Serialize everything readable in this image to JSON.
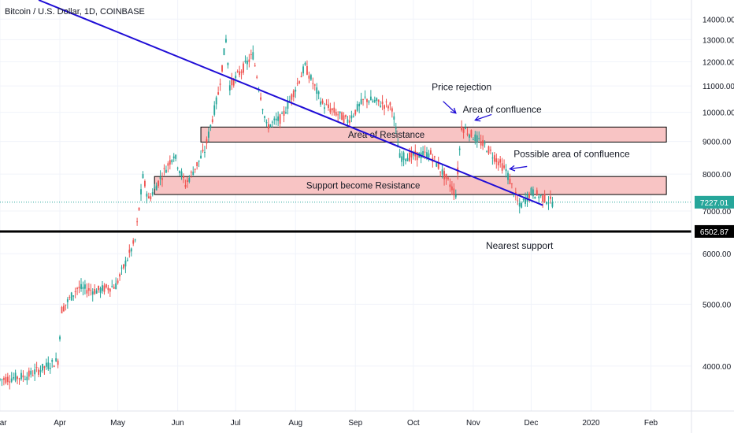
{
  "header": {
    "title": "Bitcoin / U.S. Dollar, 1D, COINBASE"
  },
  "chart_data": {
    "type": "candlestick",
    "y_scale": "log",
    "ylim": [
      3400,
      15000
    ],
    "y_ticks": [
      "4000.00",
      "5000.00",
      "6000.00",
      "7000.00",
      "8000.00",
      "9000.00",
      "10000.00",
      "11000.00",
      "12000.00",
      "13000.00",
      "14000.00"
    ],
    "y_tick_values": [
      4000,
      5000,
      6000,
      7000,
      8000,
      9000,
      10000,
      11000,
      12000,
      13000,
      14000
    ],
    "x_range": [
      "2019-03-01",
      "2020-02-22"
    ],
    "x_ticks": [
      {
        "label": "Mar",
        "date": "2019-03-01"
      },
      {
        "label": "Apr",
        "date": "2019-04-01"
      },
      {
        "label": "May",
        "date": "2019-05-01"
      },
      {
        "label": "Jun",
        "date": "2019-06-01"
      },
      {
        "label": "Jul",
        "date": "2019-07-01"
      },
      {
        "label": "Aug",
        "date": "2019-08-01"
      },
      {
        "label": "Sep",
        "date": "2019-09-01"
      },
      {
        "label": "Oct",
        "date": "2019-10-01"
      },
      {
        "label": "Nov",
        "date": "2019-11-01"
      },
      {
        "label": "Dec",
        "date": "2019-12-01"
      },
      {
        "label": "2020",
        "date": "2020-01-01"
      },
      {
        "label": "Feb",
        "date": "2020-02-01"
      }
    ],
    "price_path": [
      [
        "2019-03-01",
        3810
      ],
      [
        "2019-03-15",
        3860
      ],
      [
        "2019-03-31",
        4080
      ],
      [
        "2019-04-02",
        4900
      ],
      [
        "2019-04-10",
        5300
      ],
      [
        "2019-04-20",
        5250
      ],
      [
        "2019-04-30",
        5350
      ],
      [
        "2019-05-10",
        6300
      ],
      [
        "2019-05-14",
        7900
      ],
      [
        "2019-05-17",
        7300
      ],
      [
        "2019-05-30",
        8600
      ],
      [
        "2019-06-05",
        7700
      ],
      [
        "2019-06-15",
        8700
      ],
      [
        "2019-06-22",
        10700
      ],
      [
        "2019-06-26",
        13000
      ],
      [
        "2019-06-28",
        11000
      ],
      [
        "2019-07-10",
        12300
      ],
      [
        "2019-07-17",
        9500
      ],
      [
        "2019-07-25",
        9800
      ],
      [
        "2019-08-06",
        11800
      ],
      [
        "2019-08-15",
        10300
      ],
      [
        "2019-08-28",
        9700
      ],
      [
        "2019-09-06",
        10500
      ],
      [
        "2019-09-20",
        10200
      ],
      [
        "2019-09-24",
        8500
      ],
      [
        "2019-10-10",
        8600
      ],
      [
        "2019-10-23",
        7450
      ],
      [
        "2019-10-26",
        9500
      ],
      [
        "2019-11-08",
        8800
      ],
      [
        "2019-11-18",
        8100
      ],
      [
        "2019-11-25",
        7100
      ],
      [
        "2019-12-01",
        7500
      ],
      [
        "2019-12-12",
        7227
      ]
    ],
    "last_price": "7227.01",
    "marked_level": "6502.87",
    "marked_level_value": 6502.87,
    "trendline": {
      "start": [
        "2019-03-21",
        15000
      ],
      "end": [
        "2019-12-07",
        7150
      ],
      "color": "#1f0dd6"
    },
    "zones": [
      {
        "label": "Area of Resistance",
        "start": "2019-06-13",
        "end": "2020-02-09",
        "low": 8980,
        "high": 9480
      },
      {
        "label": "Support become Resistance",
        "start": "2019-05-20",
        "end": "2020-02-09",
        "low": 7430,
        "high": 7930
      }
    ],
    "annotations": [
      {
        "text": "Price rejection",
        "date": "2019-10-26",
        "value": 10950,
        "arrow_to": [
          "2019-10-23",
          9970
        ]
      },
      {
        "text": "Area of confluence",
        "date": "2019-11-16",
        "value": 10100,
        "arrow_to": [
          "2019-11-02",
          9720
        ]
      },
      {
        "text": "Possible area of confluence",
        "date": "2019-12-22",
        "value": 8600,
        "arrow_to": [
          "2019-11-20",
          8150
        ]
      },
      {
        "text": "Nearest support",
        "date": "2019-11-25",
        "value": 6180
      }
    ],
    "colors": {
      "up": "#26a69a",
      "down": "#ef5350",
      "zone_fill": "#f8c4c4",
      "support_line": "#000000",
      "last_price_badge": "#26a69a",
      "text": "#131722"
    }
  }
}
